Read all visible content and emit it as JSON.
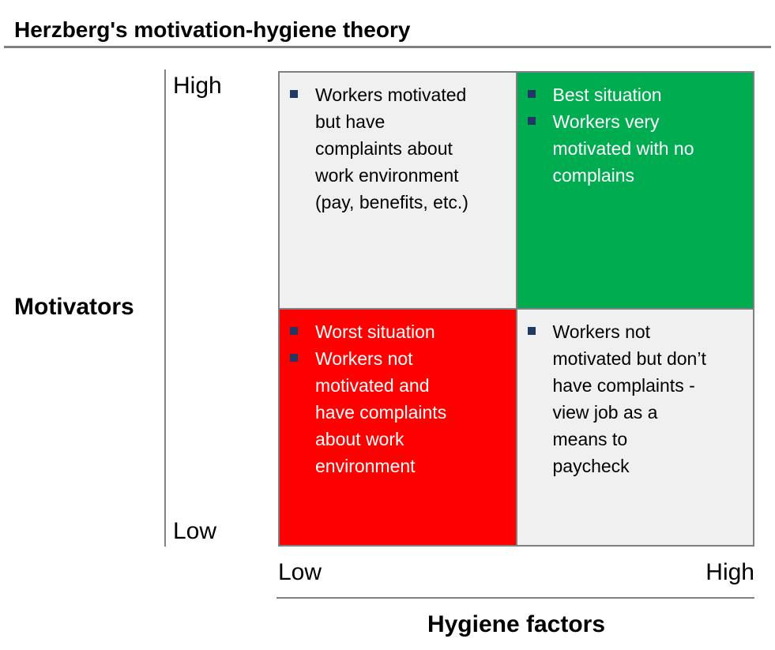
{
  "title": "Herzberg's motivation-hygiene theory",
  "y_axis": {
    "label": "Motivators",
    "high": "High",
    "low": "Low"
  },
  "x_axis": {
    "label": "Hygiene factors",
    "low": "Low",
    "high": "High"
  },
  "quadrants": {
    "top_left": {
      "position": "motivators high, hygiene low",
      "items": [
        "Workers motivated\nbut have\ncomplaints about\nwork environment\n(pay, benefits, etc.)"
      ]
    },
    "top_right": {
      "position": "motivators high, hygiene high",
      "items": [
        "Best situation",
        "Workers very\nmotivated with no\ncomplains"
      ]
    },
    "bottom_left": {
      "position": "motivators low, hygiene low",
      "items": [
        "Worst situation",
        "Workers not\nmotivated and\nhave complaints\nabout work\nenvironment"
      ]
    },
    "bottom_right": {
      "position": "motivators low, hygiene high",
      "items": [
        "Workers not\nmotivated but don’t\nhave complaints -\nview job as a\nmeans to\npaycheck"
      ]
    }
  },
  "colors": {
    "positive_green": "#00AC50",
    "negative_red": "#FF0000",
    "neutral_gray": "#F0F0F0",
    "bullet_navy": "#1F3864",
    "line_gray": "#808080"
  }
}
